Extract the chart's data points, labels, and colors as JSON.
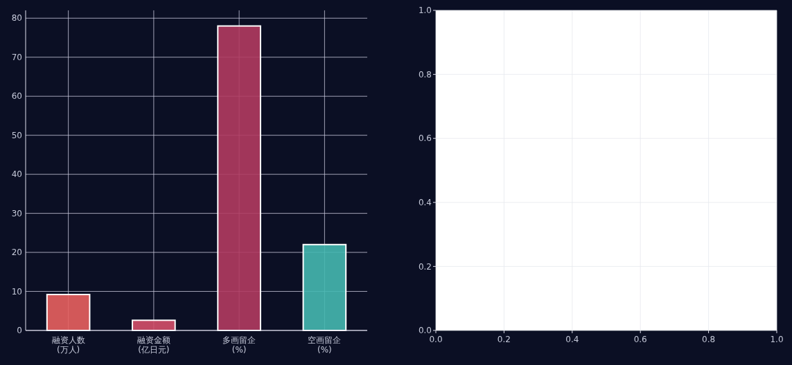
{
  "chart_data": [
    {
      "type": "bar",
      "categories": [
        "融资人数\n(万人)",
        "融资金额\n(亿日元)",
        "多画留企\n(%)",
        "空画留企\n(%)"
      ],
      "values": [
        9.2,
        2.6,
        78,
        22
      ],
      "colors": [
        "#e8615f",
        "#d4506a",
        "#b13b60",
        "#45b8b0"
      ],
      "ylim": [
        0,
        82
      ],
      "yticks": [
        0,
        10,
        20,
        30,
        40,
        50,
        60,
        70,
        80
      ],
      "grid": true
    },
    {
      "type": "scatter",
      "xlim": [
        0,
        1
      ],
      "ylim": [
        0,
        1
      ],
      "xticks": [
        {
          "value": 0,
          "label": "0.0"
        },
        {
          "value": 0.2,
          "label": "0.2"
        },
        {
          "value": 0.4,
          "label": "0.4"
        },
        {
          "value": 0.6,
          "label": "0.6"
        },
        {
          "value": 0.8,
          "label": "0.8"
        },
        {
          "value": 1,
          "label": "1.0"
        }
      ],
      "yticks": [
        {
          "value": 0,
          "label": "0.0"
        },
        {
          "value": 0.2,
          "label": "0.2"
        },
        {
          "value": 0.4,
          "label": "0.4"
        },
        {
          "value": 0.6,
          "label": "0.6"
        },
        {
          "value": 0.8,
          "label": "0.8"
        },
        {
          "value": 1,
          "label": "1.0"
        }
      ],
      "grid": true
    }
  ]
}
